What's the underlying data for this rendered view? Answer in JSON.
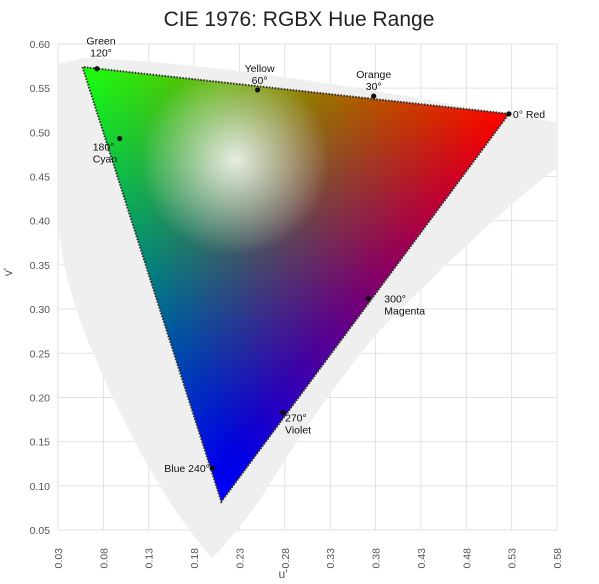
{
  "chart_data": {
    "type": "scatter",
    "title": "CIE 1976: RGBX Hue Range",
    "xlabel": "u'",
    "ylabel": "v'",
    "xlim": [
      0.03,
      0.58
    ],
    "ylim": [
      0.05,
      0.6
    ],
    "xticks": [
      "0.03",
      "0.08",
      "0.13",
      "0.18",
      "0.23",
      "0.28",
      "0.33",
      "0.38",
      "0.43",
      "0.48",
      "0.53",
      "0.58"
    ],
    "yticks": [
      "0.05",
      "0.10",
      "0.15",
      "0.20",
      "0.25",
      "0.30",
      "0.35",
      "0.40",
      "0.45",
      "0.50",
      "0.55",
      "0.60"
    ],
    "gamut_vertices": [
      {
        "u": 0.527,
        "v": 0.521
      },
      {
        "u": 0.057,
        "v": 0.574
      },
      {
        "u": 0.21,
        "v": 0.082
      }
    ],
    "points": [
      {
        "label_line1": "0° Red",
        "label_line2": "",
        "u": 0.527,
        "v": 0.521,
        "color": "#ff0000"
      },
      {
        "label_line1": "Orange",
        "label_line2": "30°",
        "u": 0.378,
        "v": 0.541,
        "color": "#ff8000"
      },
      {
        "label_line1": "Yellow",
        "label_line2": "60°",
        "u": 0.25,
        "v": 0.548,
        "color": "#ffff00"
      },
      {
        "label_line1": "Green",
        "label_line2": "120°",
        "u": 0.073,
        "v": 0.572,
        "color": "#00ff00"
      },
      {
        "label_line1": "180°",
        "label_line2": "Cyan",
        "u": 0.098,
        "v": 0.493,
        "color": "#00ffff"
      },
      {
        "label_line1": "Blue 240°",
        "label_line2": "",
        "u": 0.2,
        "v": 0.12,
        "color": "#0000ff"
      },
      {
        "label_line1": "270°",
        "label_line2": "Violet",
        "u": 0.278,
        "v": 0.183,
        "color": "#8000ff"
      },
      {
        "label_line1": "300°",
        "label_line2": "Magenta",
        "u": 0.372,
        "v": 0.312,
        "color": "#ff00ff"
      }
    ],
    "grid": true
  }
}
